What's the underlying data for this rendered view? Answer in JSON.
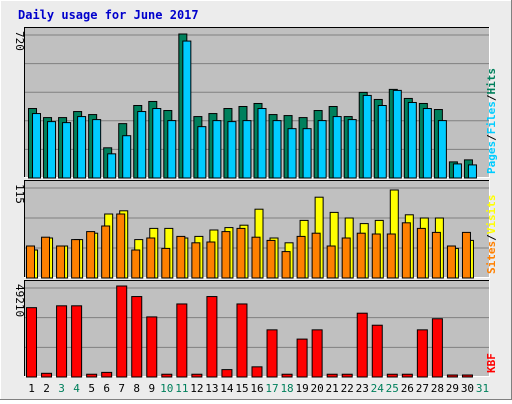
{
  "title": "Daily usage for June 2017",
  "colors": {
    "background": "#ececec",
    "plot": "#c0c0c0",
    "title": "#0000cc",
    "hits": "#00805c",
    "files": "#00ccff",
    "pages": "#00ccff",
    "visits": "#ffff00",
    "sites": "#ff8000",
    "kbytes": "#ff0000",
    "weekend_day": "#00805c",
    "weekday": "#000000"
  },
  "chart_data": [
    {
      "type": "bar",
      "id": "hits-files-pages",
      "ymax_label": "720",
      "ylim": [
        0,
        720
      ],
      "legend": [
        "Pages",
        "/",
        "Files",
        "/",
        "Hits"
      ],
      "categories": [
        "1",
        "2",
        "3",
        "4",
        "5",
        "6",
        "7",
        "8",
        "9",
        "10",
        "11",
        "12",
        "13",
        "14",
        "15",
        "16",
        "17",
        "18",
        "19",
        "20",
        "21",
        "22",
        "23",
        "24",
        "25",
        "26",
        "27",
        "28",
        "29",
        "30",
        "31"
      ],
      "series": [
        {
          "name": "Hits",
          "values": [
            345,
            300,
            300,
            330,
            315,
            150,
            270,
            360,
            380,
            335,
            715,
            305,
            320,
            345,
            355,
            370,
            315,
            310,
            300,
            335,
            355,
            305,
            425,
            390,
            440,
            395,
            370,
            340,
            80,
            90,
            0
          ]
        },
        {
          "name": "Files",
          "values": [
            320,
            280,
            275,
            305,
            290,
            120,
            210,
            330,
            345,
            285,
            680,
            255,
            285,
            280,
            285,
            345,
            285,
            245,
            245,
            285,
            305,
            290,
            410,
            360,
            435,
            375,
            345,
            285,
            70,
            65,
            0
          ]
        },
        {
          "name": "Pages",
          "values": [
            320,
            280,
            275,
            305,
            290,
            120,
            210,
            330,
            345,
            285,
            680,
            255,
            285,
            280,
            285,
            345,
            285,
            245,
            245,
            285,
            305,
            290,
            410,
            360,
            435,
            375,
            345,
            285,
            70,
            65,
            0
          ]
        }
      ]
    },
    {
      "type": "bar",
      "id": "visits-sites",
      "ymax_label": "115",
      "ylim": [
        0,
        115
      ],
      "legend": [
        "Sites",
        "/",
        "Visits"
      ],
      "categories": [
        "1",
        "2",
        "3",
        "4",
        "5",
        "6",
        "7",
        "8",
        "9",
        "10",
        "11",
        "12",
        "13",
        "14",
        "15",
        "16",
        "17",
        "18",
        "19",
        "20",
        "21",
        "22",
        "23",
        "24",
        "25",
        "26",
        "27",
        "28",
        "29",
        "30",
        "31"
      ],
      "series": [
        {
          "name": "Visits",
          "values": [
            35,
            50,
            40,
            48,
            56,
            80,
            84,
            48,
            62,
            62,
            50,
            52,
            60,
            63,
            66,
            86,
            50,
            44,
            72,
            101,
            82,
            75,
            68,
            72,
            110,
            79,
            75,
            75,
            37,
            47,
            0
          ]
        },
        {
          "name": "Sites",
          "values": [
            40,
            51,
            40,
            48,
            58,
            65,
            80,
            35,
            50,
            37,
            52,
            44,
            45,
            58,
            62,
            51,
            47,
            33,
            52,
            56,
            40,
            50,
            56,
            55,
            55,
            69,
            62,
            57,
            40,
            57,
            0
          ]
        }
      ]
    },
    {
      "type": "bar",
      "id": "kbytes",
      "ymax_label": "49210",
      "ylim": [
        0,
        49210
      ],
      "legend": [
        "KB",
        "F"
      ],
      "categories": [
        "1",
        "2",
        "3",
        "4",
        "5",
        "6",
        "7",
        "8",
        "9",
        "10",
        "11",
        "12",
        "13",
        "14",
        "15",
        "16",
        "17",
        "18",
        "19",
        "20",
        "21",
        "22",
        "23",
        "24",
        "25",
        "26",
        "27",
        "28",
        "29",
        "30",
        "31"
      ],
      "series": [
        {
          "name": "KBytes",
          "values": [
            37500,
            2000,
            38500,
            38500,
            1500,
            2500,
            49210,
            43500,
            32500,
            1500,
            39500,
            1500,
            43500,
            4000,
            39500,
            5500,
            25500,
            1500,
            20500,
            25500,
            1500,
            1500,
            34500,
            28000,
            1500,
            1500,
            25500,
            31500,
            300,
            300,
            0
          ]
        }
      ]
    }
  ],
  "x_labels": [
    {
      "d": "1",
      "weekend": false
    },
    {
      "d": "2",
      "weekend": false
    },
    {
      "d": "3",
      "weekend": true
    },
    {
      "d": "4",
      "weekend": true
    },
    {
      "d": "5",
      "weekend": false
    },
    {
      "d": "6",
      "weekend": false
    },
    {
      "d": "7",
      "weekend": false
    },
    {
      "d": "8",
      "weekend": false
    },
    {
      "d": "9",
      "weekend": false
    },
    {
      "d": "10",
      "weekend": true
    },
    {
      "d": "11",
      "weekend": true
    },
    {
      "d": "12",
      "weekend": false
    },
    {
      "d": "13",
      "weekend": false
    },
    {
      "d": "14",
      "weekend": false
    },
    {
      "d": "15",
      "weekend": false
    },
    {
      "d": "16",
      "weekend": false
    },
    {
      "d": "17",
      "weekend": true
    },
    {
      "d": "18",
      "weekend": true
    },
    {
      "d": "19",
      "weekend": false
    },
    {
      "d": "20",
      "weekend": false
    },
    {
      "d": "21",
      "weekend": false
    },
    {
      "d": "22",
      "weekend": false
    },
    {
      "d": "23",
      "weekend": false
    },
    {
      "d": "24",
      "weekend": true
    },
    {
      "d": "25",
      "weekend": true
    },
    {
      "d": "26",
      "weekend": false
    },
    {
      "d": "27",
      "weekend": false
    },
    {
      "d": "28",
      "weekend": false
    },
    {
      "d": "29",
      "weekend": false
    },
    {
      "d": "30",
      "weekend": false
    },
    {
      "d": "31",
      "weekend": true
    }
  ]
}
